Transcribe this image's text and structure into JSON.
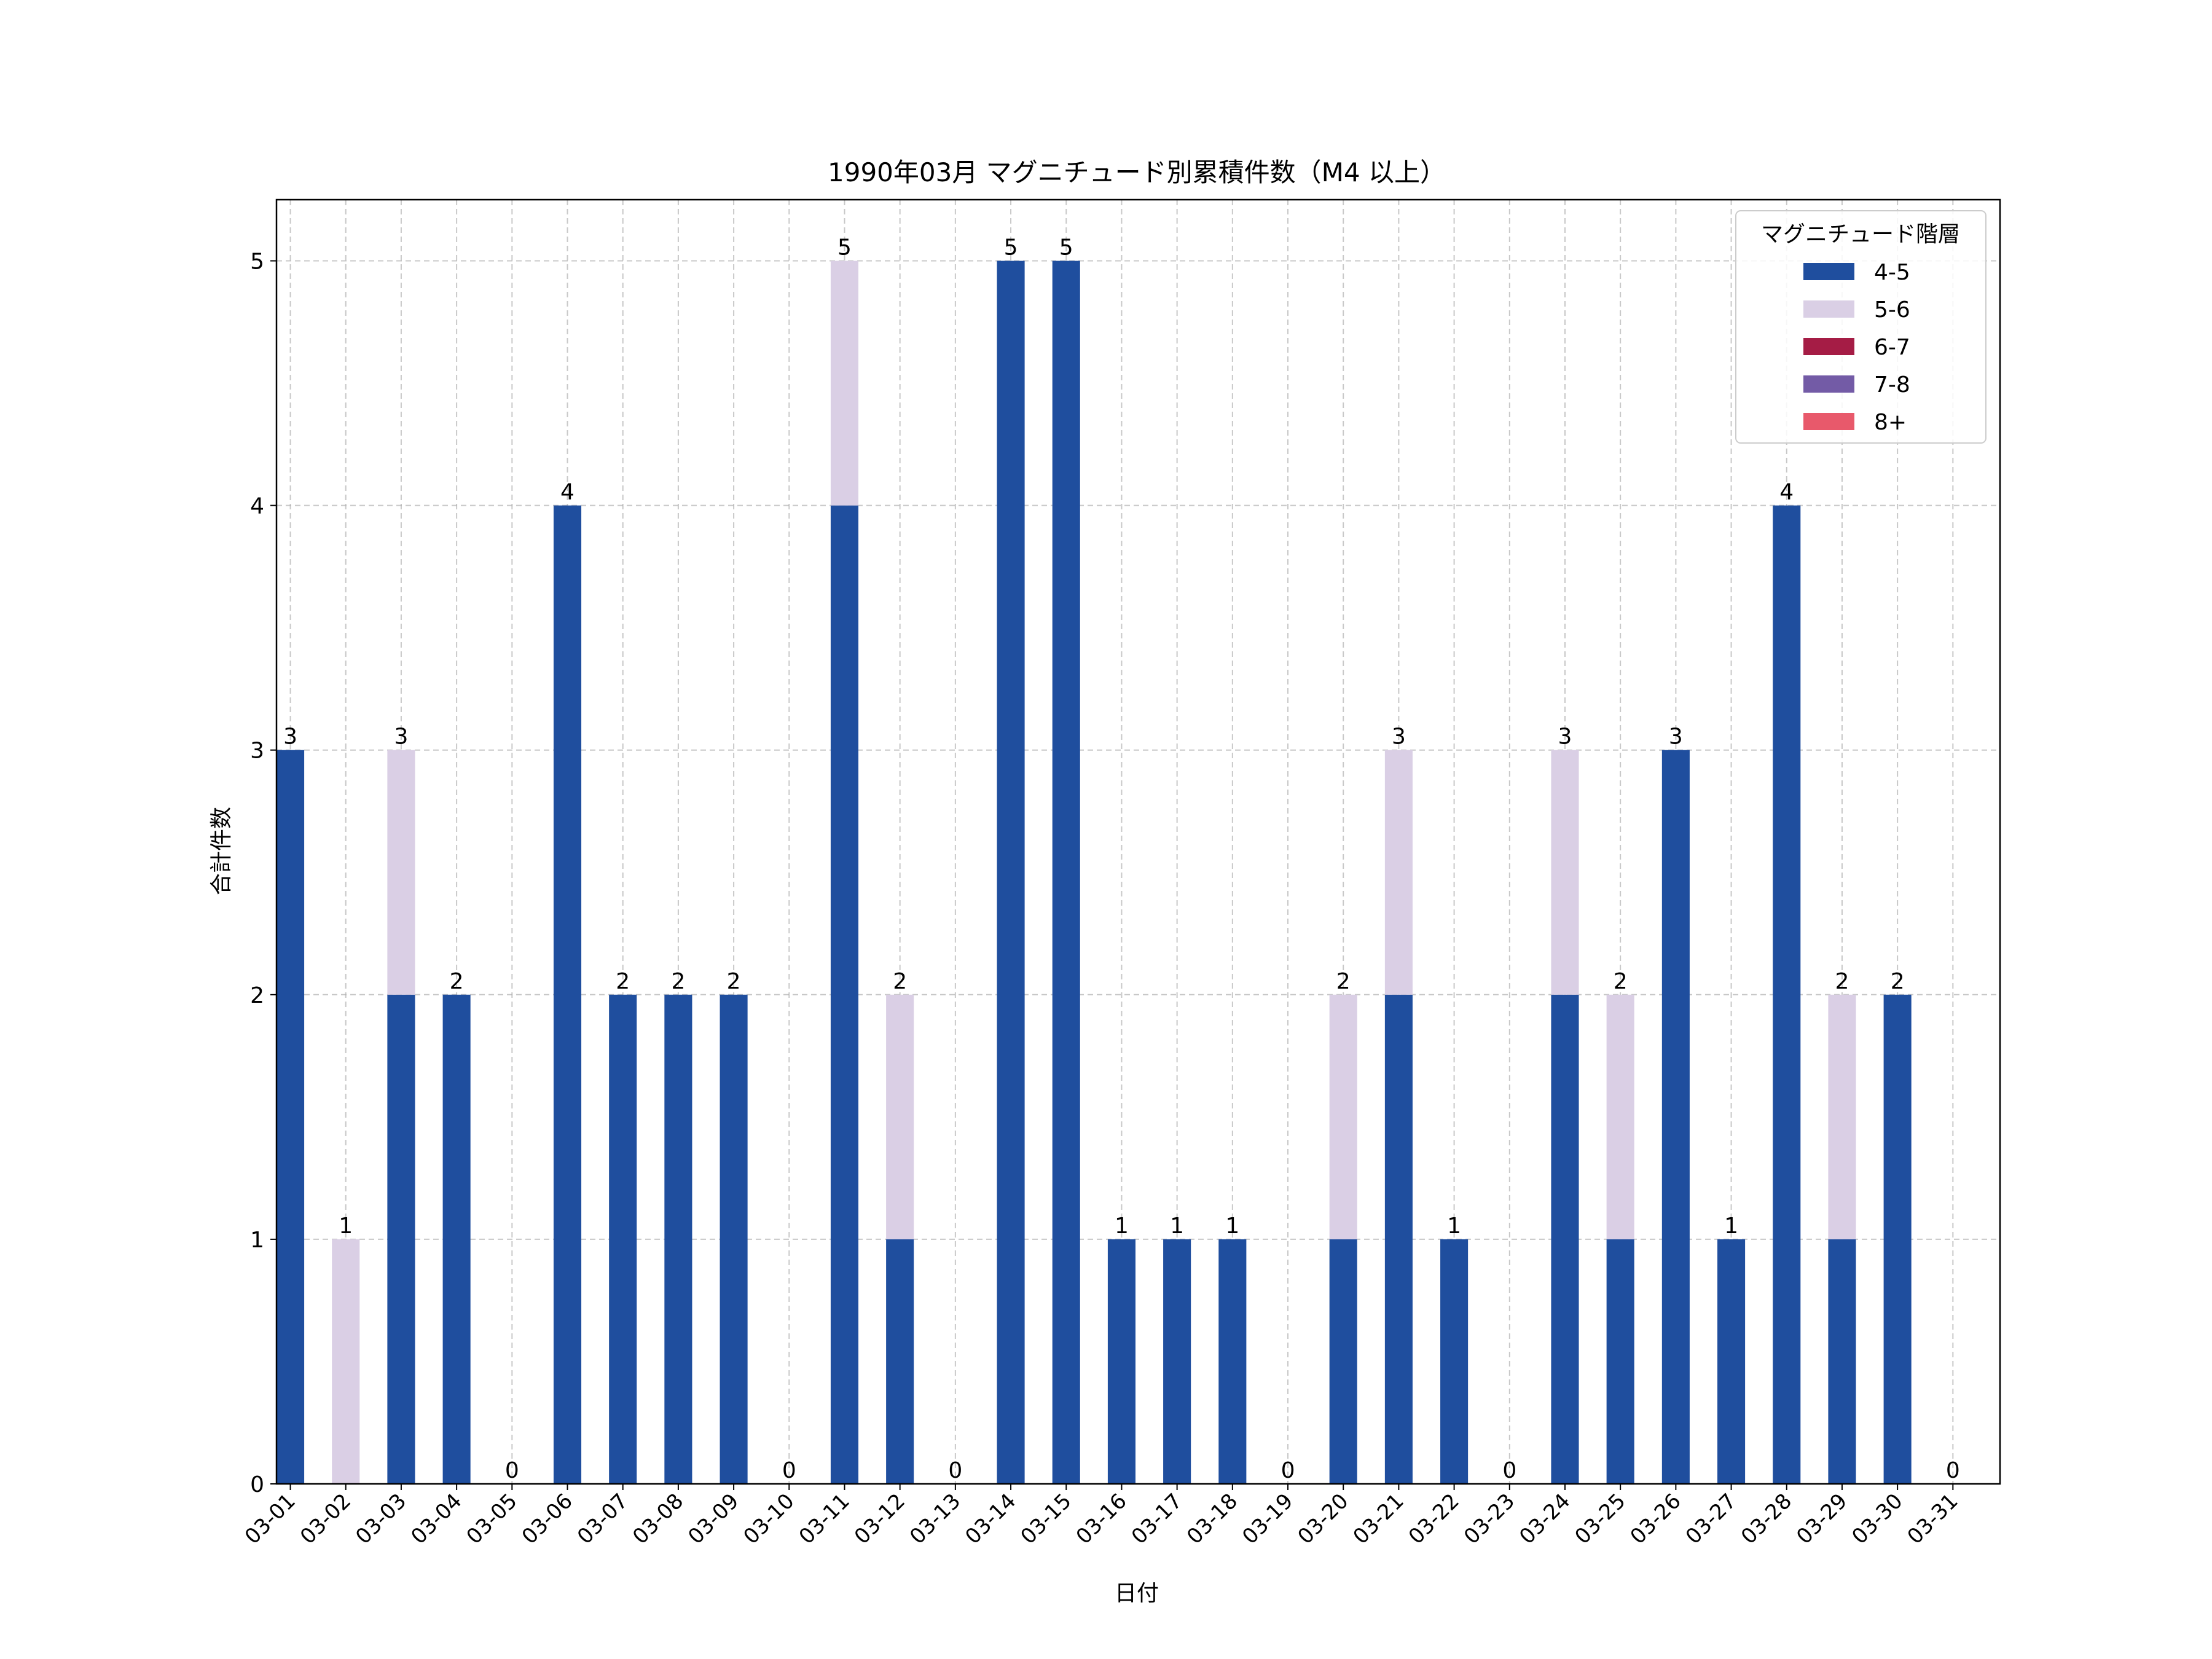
{
  "chart_data": {
    "type": "bar",
    "stacked": true,
    "title": "1990年03月 マグニチュード別累積件数（M4 以上）",
    "xlabel": "日付",
    "ylabel": "合計件数",
    "ylim": [
      0,
      5.25
    ],
    "yticks": [
      0,
      1,
      2,
      3,
      4,
      5
    ],
    "grid": true,
    "legend": {
      "title": "マグニチュード階層",
      "placement": "top-right"
    },
    "categories": [
      "03-01",
      "03-02",
      "03-03",
      "03-04",
      "03-05",
      "03-06",
      "03-07",
      "03-08",
      "03-09",
      "03-10",
      "03-11",
      "03-12",
      "03-13",
      "03-14",
      "03-15",
      "03-16",
      "03-17",
      "03-18",
      "03-19",
      "03-20",
      "03-21",
      "03-22",
      "03-23",
      "03-24",
      "03-25",
      "03-26",
      "03-27",
      "03-28",
      "03-29",
      "03-30",
      "03-31"
    ],
    "series": [
      {
        "name": "4-5",
        "color": "#1f4e9e",
        "values": [
          3,
          0,
          2,
          2,
          0,
          4,
          2,
          2,
          2,
          0,
          4,
          1,
          0,
          5,
          5,
          1,
          1,
          1,
          0,
          1,
          2,
          1,
          0,
          2,
          1,
          3,
          1,
          4,
          1,
          2,
          0
        ]
      },
      {
        "name": "5-6",
        "color": "#dacfe5",
        "values": [
          0,
          1,
          1,
          0,
          0,
          0,
          0,
          0,
          0,
          0,
          1,
          1,
          0,
          0,
          0,
          0,
          0,
          0,
          0,
          1,
          1,
          0,
          0,
          1,
          1,
          0,
          0,
          0,
          1,
          0,
          0
        ]
      },
      {
        "name": "6-7",
        "color": "#a51c45",
        "values": [
          0,
          0,
          0,
          0,
          0,
          0,
          0,
          0,
          0,
          0,
          0,
          0,
          0,
          0,
          0,
          0,
          0,
          0,
          0,
          0,
          0,
          0,
          0,
          0,
          0,
          0,
          0,
          0,
          0,
          0,
          0
        ]
      },
      {
        "name": "7-8",
        "color": "#735ba6",
        "values": [
          0,
          0,
          0,
          0,
          0,
          0,
          0,
          0,
          0,
          0,
          0,
          0,
          0,
          0,
          0,
          0,
          0,
          0,
          0,
          0,
          0,
          0,
          0,
          0,
          0,
          0,
          0,
          0,
          0,
          0,
          0
        ]
      },
      {
        "name": "8+",
        "color": "#e8596b",
        "values": [
          0,
          0,
          0,
          0,
          0,
          0,
          0,
          0,
          0,
          0,
          0,
          0,
          0,
          0,
          0,
          0,
          0,
          0,
          0,
          0,
          0,
          0,
          0,
          0,
          0,
          0,
          0,
          0,
          0,
          0,
          0
        ]
      }
    ],
    "totals": [
      3,
      1,
      3,
      2,
      0,
      4,
      2,
      2,
      2,
      0,
      5,
      2,
      0,
      5,
      5,
      1,
      1,
      1,
      0,
      2,
      3,
      1,
      0,
      3,
      2,
      3,
      1,
      4,
      2,
      2,
      0
    ]
  }
}
